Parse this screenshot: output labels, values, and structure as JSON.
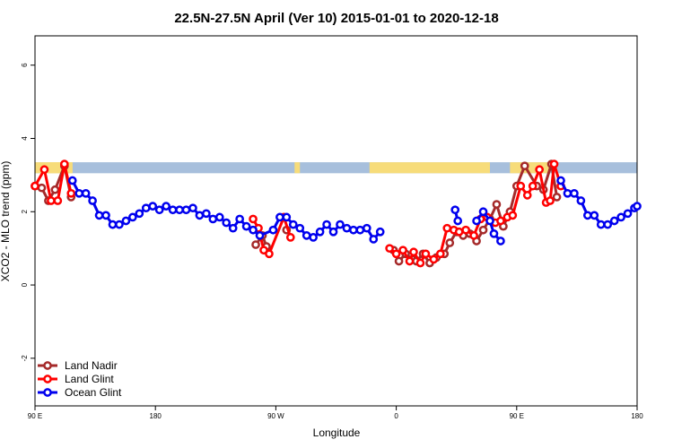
{
  "chart_data": {
    "type": "line",
    "title": "22.5N-27.5N April (Ver 10)   2015-01-01 to 2020-12-18",
    "xlabel": "Longitude",
    "ylabel": "XCO2 - MLO trend (ppm)",
    "x_ticks": [
      {
        "value": 90,
        "label": "90 E"
      },
      {
        "value": 180,
        "label": "180"
      },
      {
        "value": 270,
        "label": "90 W"
      },
      {
        "value": 360,
        "label": "0"
      },
      {
        "value": 450,
        "label": "90 E"
      },
      {
        "value": 540,
        "label": "180"
      }
    ],
    "y_ticks": [
      -2,
      0,
      2,
      4,
      6
    ],
    "xlim": [
      90,
      540
    ],
    "ylim": [
      -3.3,
      6.8
    ],
    "grid": false,
    "legend_position": "bottom-left",
    "band": {
      "ymin": 3.05,
      "ymax": 3.35,
      "ocean_color": "#a7bfdc",
      "land_color": "#f7dc7a",
      "land_segments": [
        [
          90,
          118
        ],
        [
          100,
          118
        ],
        [
          340,
          430
        ],
        [
          445,
          475
        ],
        [
          284,
          288
        ]
      ]
    },
    "series": [
      {
        "name": "Land Nadir",
        "color": "#a52a2a",
        "points": [
          [
            90,
            2.7
          ],
          [
            95,
            2.65
          ],
          [
            100,
            2.3
          ],
          [
            105,
            2.6
          ],
          [
            112,
            3.25
          ],
          [
            117,
            2.4
          ],
          [
            255,
            1.1
          ],
          [
            260,
            1.35
          ],
          [
            263,
            1.05
          ],
          [
            278,
            1.5
          ],
          [
            358,
            0.95
          ],
          [
            362,
            0.65
          ],
          [
            367,
            0.85
          ],
          [
            372,
            0.7
          ],
          [
            375,
            0.65
          ],
          [
            380,
            0.85
          ],
          [
            385,
            0.6
          ],
          [
            390,
            0.75
          ],
          [
            396,
            0.85
          ],
          [
            400,
            1.15
          ],
          [
            405,
            1.45
          ],
          [
            410,
            1.35
          ],
          [
            415,
            1.4
          ],
          [
            420,
            1.2
          ],
          [
            425,
            1.5
          ],
          [
            430,
            1.8
          ],
          [
            435,
            2.2
          ],
          [
            440,
            1.6
          ],
          [
            445,
            2.0
          ],
          [
            450,
            2.7
          ],
          [
            456,
            3.25
          ],
          [
            465,
            2.7
          ],
          [
            470,
            2.6
          ],
          [
            476,
            3.3
          ],
          [
            480,
            2.4
          ]
        ]
      },
      {
        "name": "Land Glint",
        "color": "#ff0000",
        "points": [
          [
            90,
            2.7
          ],
          [
            97,
            3.15
          ],
          [
            102,
            2.3
          ],
          [
            107,
            2.3
          ],
          [
            112,
            3.3
          ],
          [
            117,
            2.5
          ],
          [
            253,
            1.8
          ],
          [
            257,
            1.55
          ],
          [
            261,
            0.95
          ],
          [
            265,
            0.85
          ],
          [
            276,
            1.85
          ],
          [
            281,
            1.3
          ],
          [
            355,
            1.0
          ],
          [
            360,
            0.85
          ],
          [
            365,
            0.95
          ],
          [
            370,
            0.65
          ],
          [
            373,
            0.9
          ],
          [
            378,
            0.6
          ],
          [
            382,
            0.85
          ],
          [
            388,
            0.7
          ],
          [
            393,
            0.85
          ],
          [
            398,
            1.55
          ],
          [
            403,
            1.5
          ],
          [
            407,
            1.45
          ],
          [
            412,
            1.5
          ],
          [
            418,
            1.35
          ],
          [
            423,
            1.8
          ],
          [
            428,
            1.85
          ],
          [
            434,
            1.7
          ],
          [
            438,
            1.75
          ],
          [
            443,
            1.85
          ],
          [
            447,
            1.9
          ],
          [
            453,
            2.7
          ],
          [
            458,
            2.45
          ],
          [
            462,
            2.7
          ],
          [
            467,
            3.15
          ],
          [
            472,
            2.25
          ],
          [
            475,
            2.3
          ],
          [
            478,
            3.3
          ],
          [
            483,
            2.7
          ]
        ]
      },
      {
        "name": "Ocean Glint",
        "color": "#0000ee",
        "points": [
          [
            118,
            2.85
          ],
          [
            123,
            2.5
          ],
          [
            128,
            2.5
          ],
          [
            133,
            2.3
          ],
          [
            138,
            1.9
          ],
          [
            143,
            1.9
          ],
          [
            148,
            1.65
          ],
          [
            153,
            1.65
          ],
          [
            158,
            1.75
          ],
          [
            163,
            1.85
          ],
          [
            168,
            1.95
          ],
          [
            173,
            2.1
          ],
          [
            178,
            2.15
          ],
          [
            183,
            2.05
          ],
          [
            188,
            2.15
          ],
          [
            193,
            2.05
          ],
          [
            198,
            2.05
          ],
          [
            203,
            2.05
          ],
          [
            208,
            2.1
          ],
          [
            213,
            1.9
          ],
          [
            218,
            1.95
          ],
          [
            223,
            1.8
          ],
          [
            228,
            1.85
          ],
          [
            233,
            1.7
          ],
          [
            238,
            1.55
          ],
          [
            243,
            1.8
          ],
          [
            248,
            1.6
          ],
          [
            253,
            1.5
          ],
          [
            258,
            1.35
          ],
          [
            268,
            1.5
          ],
          [
            273,
            1.85
          ],
          [
            278,
            1.85
          ],
          [
            283,
            1.65
          ],
          [
            288,
            1.55
          ],
          [
            293,
            1.35
          ],
          [
            298,
            1.3
          ],
          [
            303,
            1.45
          ],
          [
            308,
            1.65
          ],
          [
            313,
            1.45
          ],
          [
            318,
            1.65
          ],
          [
            323,
            1.55
          ],
          [
            328,
            1.5
          ],
          [
            333,
            1.5
          ],
          [
            338,
            1.55
          ],
          [
            343,
            1.25
          ],
          [
            348,
            1.45
          ],
          [
            404,
            2.05
          ],
          [
            406,
            1.75
          ],
          [
            420,
            1.75
          ],
          [
            425,
            2.0
          ],
          [
            430,
            1.75
          ],
          [
            433,
            1.4
          ],
          [
            438,
            1.2
          ],
          [
            483,
            2.85
          ],
          [
            488,
            2.5
          ],
          [
            493,
            2.5
          ],
          [
            498,
            2.3
          ],
          [
            503,
            1.9
          ],
          [
            508,
            1.9
          ],
          [
            513,
            1.65
          ],
          [
            518,
            1.65
          ],
          [
            523,
            1.75
          ],
          [
            528,
            1.85
          ],
          [
            533,
            1.95
          ],
          [
            538,
            2.1
          ],
          [
            540,
            2.15
          ]
        ]
      }
    ]
  }
}
